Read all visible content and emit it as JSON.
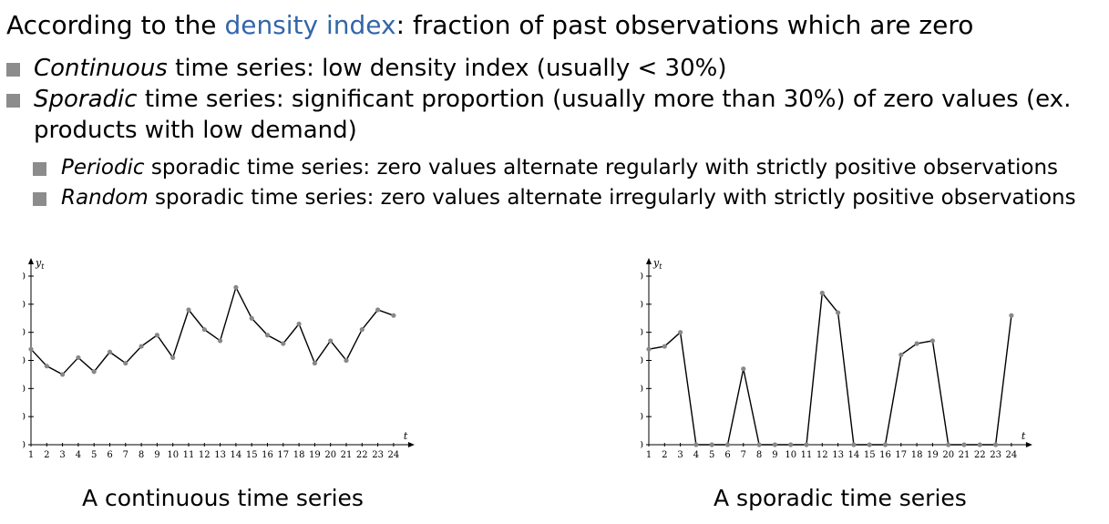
{
  "heading": {
    "prefix": "According to the ",
    "highlight": "density index",
    "suffix": ": fraction of past observations which are zero"
  },
  "bullets": [
    {
      "em": "Continuous",
      "text": " time series: low density index (usually < 30%)"
    },
    {
      "em": "Sporadic",
      "text": " time series: significant proportion (usually more than 30%) of zero values (ex.",
      "text2": "products with low demand)"
    }
  ],
  "sub_bullets": [
    {
      "em": "Periodic",
      "text": " sporadic time series: zero values alternate regularly with strictly positive observations"
    },
    {
      "em": "Random",
      "text": " sporadic time series: zero values alternate irregularly with strictly positive observations"
    }
  ],
  "captions": [
    "A continuous time series",
    "A sporadic time series"
  ],
  "colors": {
    "highlight": "#3366aa",
    "bullet": "#8c8c8c",
    "line": "#000000",
    "point": "#888888"
  },
  "chart_data": [
    {
      "type": "line",
      "ylabel": "y_t",
      "xlabel": "t",
      "x": [
        1,
        2,
        3,
        4,
        5,
        6,
        7,
        8,
        9,
        10,
        11,
        12,
        13,
        14,
        15,
        16,
        17,
        18,
        19,
        20,
        21,
        22,
        23,
        24
      ],
      "series": [
        {
          "values": [
            34,
            28,
            25,
            31,
            26,
            33,
            29,
            35,
            39,
            31,
            48,
            41,
            37,
            56,
            45,
            39,
            36,
            43,
            29,
            37,
            30,
            41,
            48,
            46
          ]
        }
      ],
      "ylim": [
        0,
        60
      ],
      "yticks": [
        0,
        10,
        20,
        30,
        40,
        50,
        60
      ],
      "grid": false
    },
    {
      "type": "line",
      "ylabel": "y_t",
      "xlabel": "t",
      "x": [
        1,
        2,
        3,
        4,
        5,
        6,
        7,
        8,
        9,
        10,
        11,
        12,
        13,
        14,
        15,
        16,
        17,
        18,
        19,
        20,
        21,
        22,
        23,
        24
      ],
      "series": [
        {
          "values": [
            34,
            35,
            40,
            0,
            0,
            0,
            27,
            0,
            0,
            0,
            0,
            54,
            47,
            0,
            0,
            0,
            32,
            36,
            37,
            0,
            0,
            0,
            0,
            46
          ]
        }
      ],
      "ylim": [
        0,
        60
      ],
      "yticks": [
        0,
        10,
        20,
        30,
        40,
        50,
        60
      ],
      "grid": false
    }
  ]
}
